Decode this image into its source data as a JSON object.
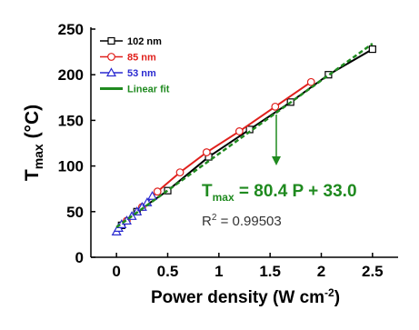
{
  "chart_data": {
    "type": "scatter",
    "ylabel": {
      "main": "T",
      "sub": "max",
      "rest": " (°C)"
    },
    "xlabel": {
      "main": "Power density (W cm",
      "sup": "-2",
      "rest": ")"
    },
    "xlim": [
      -0.25,
      2.75
    ],
    "xticks": [
      0,
      0.5,
      1,
      1.5,
      2,
      2.5
    ],
    "ylim": [
      0,
      250
    ],
    "yticks": [
      0,
      50,
      100,
      150,
      200,
      250
    ],
    "legend": "upper left",
    "series": [
      {
        "name": "102 nm",
        "color": "#000000",
        "marker": "square",
        "x": [
          0.05,
          0.2,
          0.5,
          0.9,
          1.3,
          1.7,
          2.07,
          2.5
        ],
        "values": [
          35,
          50,
          73,
          110,
          140,
          170,
          200,
          228
        ]
      },
      {
        "name": "85 nm",
        "color": "#e0201c",
        "marker": "circle",
        "x": [
          0.1,
          0.25,
          0.4,
          0.62,
          0.88,
          1.2,
          1.55,
          1.9
        ],
        "values": [
          40,
          55,
          72,
          93,
          115,
          138,
          165,
          192
        ]
      },
      {
        "name": "53 nm",
        "color": "#2a2ad0",
        "marker": "triangle",
        "x": [
          0,
          0.02,
          0.05,
          0.1,
          0.15,
          0.2,
          0.25,
          0.3,
          0.35
        ],
        "values": [
          28,
          32,
          36,
          40,
          45,
          50,
          55,
          60,
          67
        ]
      },
      {
        "name": "Linear fit",
        "color": "#1f8a1f",
        "marker": "none",
        "x": [
          0,
          2.5
        ],
        "values": [
          33,
          234
        ]
      }
    ],
    "annotations": {
      "fit": {
        "main": "T",
        "sub": "max",
        "rest": " = 80.4 P + 33.0"
      },
      "r2": {
        "main": "R",
        "sup": "2",
        "rest": " = 0.99503"
      }
    }
  }
}
